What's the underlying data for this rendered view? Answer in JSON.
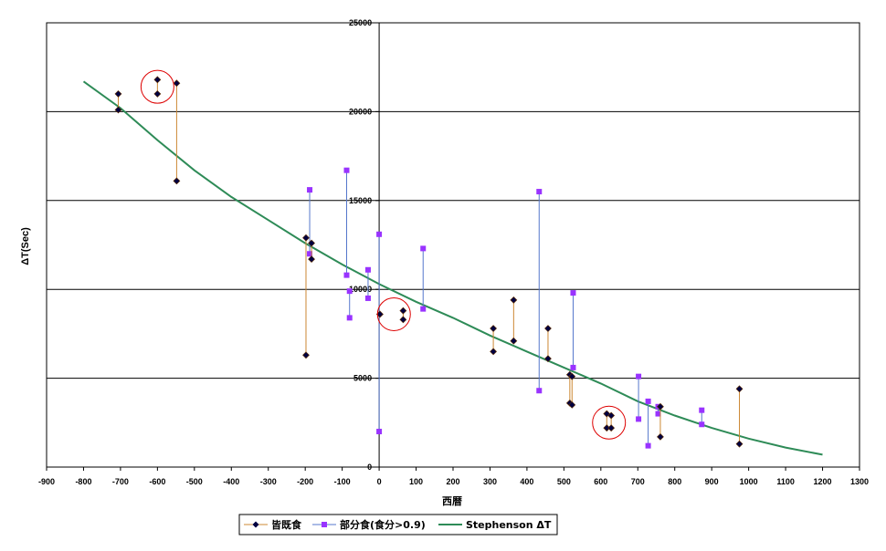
{
  "chart_data": {
    "type": "scatter",
    "title": "",
    "xlabel": "西暦",
    "ylabel": "ΔT(Sec)",
    "xlim": [
      -900,
      1300
    ],
    "ylim": [
      0,
      25000
    ],
    "x_ticks": [
      -900,
      -800,
      -700,
      -600,
      -500,
      -400,
      -300,
      -200,
      -100,
      0,
      100,
      200,
      300,
      400,
      500,
      600,
      700,
      800,
      900,
      1000,
      1100,
      1200,
      1300
    ],
    "y_ticks": [
      0,
      5000,
      10000,
      15000,
      20000,
      25000
    ],
    "y_tick_labels": [
      "0",
      "5000",
      "10000",
      "15000",
      "20000",
      "25000"
    ],
    "grid": "horizontal",
    "legend_position": "bottom",
    "colors": {
      "total": "#cc8833",
      "total_marker": "#000040",
      "partial": "#5577cc",
      "partial_marker": "#9933ff",
      "curve": "#2e8b57",
      "circle": "#dd0000"
    },
    "series": [
      {
        "name": "皆既食",
        "segments": [
          {
            "x": -706,
            "y": [
              21000,
              20100
            ]
          },
          {
            "x": -600,
            "y": [
              21800,
              21000
            ]
          },
          {
            "x": -548,
            "y": [
              21600,
              16100
            ]
          },
          {
            "x": -198,
            "y": [
              12900,
              6300
            ]
          },
          {
            "x": -183,
            "y": [
              12600,
              11700
            ]
          },
          {
            "x": 2,
            "y": [
              8600,
              8600
            ]
          },
          {
            "x": 65,
            "y": [
              8800,
              8300
            ]
          },
          {
            "x": 309,
            "y": [
              7800,
              6500
            ]
          },
          {
            "x": 364,
            "y": [
              9400,
              7100
            ]
          },
          {
            "x": 457,
            "y": [
              7800,
              6100
            ]
          },
          {
            "x": 516,
            "y": [
              5200,
              3600
            ]
          },
          {
            "x": 522,
            "y": [
              5100,
              3500
            ]
          },
          {
            "x": 616,
            "y": [
              3000,
              2200
            ]
          },
          {
            "x": 628,
            "y": [
              2900,
              2200
            ]
          },
          {
            "x": 761,
            "y": [
              3400,
              1700
            ]
          },
          {
            "x": 975,
            "y": [
              4400,
              1300
            ]
          }
        ]
      },
      {
        "name": "部分食(食分>0.9)",
        "segments": [
          {
            "x": -188,
            "y": [
              15600,
              12000
            ]
          },
          {
            "x": -88,
            "y": [
              16700,
              10800
            ]
          },
          {
            "x": -80,
            "y": [
              9900,
              8400
            ]
          },
          {
            "x": -30,
            "y": [
              11100,
              9500
            ]
          },
          {
            "x": 0,
            "y": [
              13100,
              2000
            ]
          },
          {
            "x": 119,
            "y": [
              12300,
              8900
            ]
          },
          {
            "x": 433,
            "y": [
              15500,
              4300
            ]
          },
          {
            "x": 525,
            "y": [
              9800,
              5600
            ]
          },
          {
            "x": 702,
            "y": [
              5100,
              2700
            ]
          },
          {
            "x": 728,
            "y": [
              3700,
              1200
            ]
          },
          {
            "x": 755,
            "y": [
              3400,
              3000
            ]
          },
          {
            "x": 873,
            "y": [
              3200,
              2400
            ]
          }
        ]
      },
      {
        "name": "Stephenson ΔT",
        "x": [
          -800,
          -700,
          -600,
          -500,
          -400,
          -300,
          -200,
          -100,
          0,
          100,
          200,
          300,
          400,
          500,
          600,
          700,
          800,
          900,
          1000,
          1100,
          1200
        ],
        "values": [
          21700,
          20200,
          18400,
          16700,
          15200,
          13900,
          12600,
          11400,
          10300,
          9300,
          8400,
          7400,
          6500,
          5600,
          4700,
          3700,
          2900,
          2200,
          1600,
          1100,
          700
        ]
      }
    ],
    "annotations": [
      {
        "shape": "circle",
        "x": -600,
        "y": 21400
      },
      {
        "shape": "circle",
        "x": 40,
        "y": 8600
      },
      {
        "shape": "circle",
        "x": 622,
        "y": 2500
      }
    ]
  }
}
